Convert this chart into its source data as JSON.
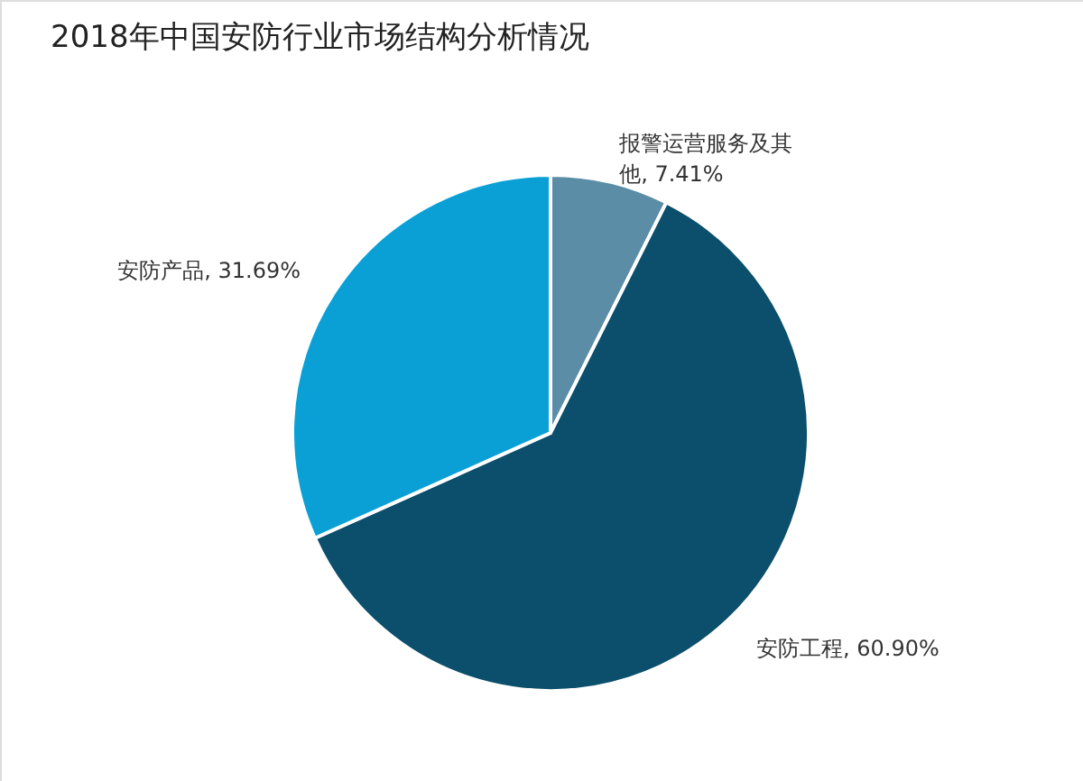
{
  "chart_data": {
    "type": "pie",
    "title": "2018年中国安防行业市场结构分析情况",
    "categories": [
      "报警运营服务及其他",
      "安防工程",
      "安防产品"
    ],
    "values": [
      7.41,
      60.9,
      31.69
    ],
    "value_labels": [
      "7.41%",
      "60.90%",
      "31.69%"
    ],
    "colors": [
      "#5b8ea6",
      "#0b4f6c",
      "#0aa0d6"
    ]
  }
}
